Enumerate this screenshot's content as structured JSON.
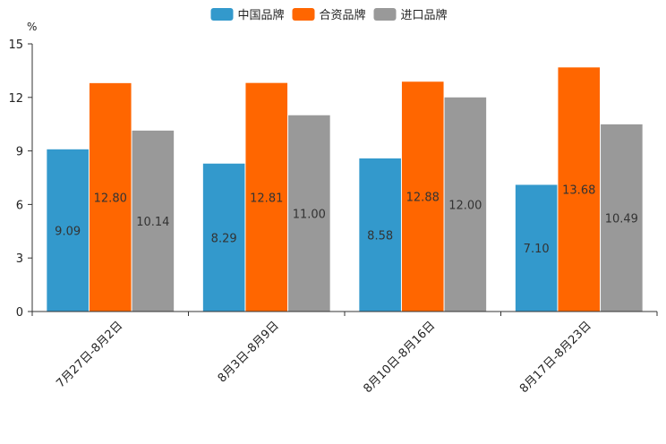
{
  "chart_data": {
    "type": "bar",
    "unit": "%",
    "categories": [
      "7月27日-8月2日",
      "8月3日-8月9日",
      "8月10日-8月16日",
      "8月17日-8月23日"
    ],
    "series": [
      {
        "name": "中国品牌",
        "color": "#3399cc",
        "values": [
          9.09,
          8.29,
          8.58,
          7.1
        ],
        "labels": [
          "9.09",
          "8.29",
          "8.58",
          "7.10"
        ]
      },
      {
        "name": "合资品牌",
        "color": "#ff6600",
        "values": [
          12.8,
          12.81,
          12.88,
          13.68
        ],
        "labels": [
          "12.80",
          "12.81",
          "12.88",
          "13.68"
        ]
      },
      {
        "name": "进口品牌",
        "color": "#999999",
        "values": [
          10.14,
          11.0,
          12.0,
          10.49
        ],
        "labels": [
          "10.14",
          "11.00",
          "12.00",
          "10.49"
        ]
      }
    ],
    "ylim": [
      0,
      15
    ],
    "yticks": [
      0,
      3,
      6,
      9,
      12,
      15
    ],
    "ytick_labels": [
      "0",
      "3",
      "6",
      "9",
      "12",
      "15"
    ],
    "legend_position": "top-center",
    "grid": false
  }
}
